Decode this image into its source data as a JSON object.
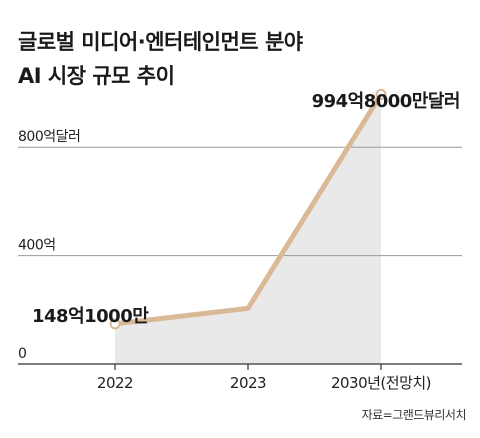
{
  "chart_data": {
    "type": "area",
    "title": [
      "글로벌 미디어·엔터테인먼트 분야",
      "AI 시장 규모 추이"
    ],
    "categories": [
      "2022",
      "2023",
      "2030년(전망치)"
    ],
    "values": [
      14.81,
      20.5,
      99.48
    ],
    "value_unit": "억달러",
    "y_ticks": [
      {
        "value": 0,
        "label": "0"
      },
      {
        "value": 40,
        "label": "400억"
      },
      {
        "value": 80,
        "label": "800억달러"
      }
    ],
    "ylim": [
      0,
      100
    ],
    "data_labels": [
      {
        "index": 0,
        "text": "148억1000만"
      },
      {
        "index": 2,
        "text": "994억8000만달러"
      }
    ],
    "grid": true,
    "source": "자료=그랜드뷰리서치",
    "colors": {
      "line": "#d9b996",
      "area": "#e9e9e9",
      "grid": "#9a9a9a",
      "axis": "#333333",
      "marker_fill": "#ffffff"
    }
  }
}
